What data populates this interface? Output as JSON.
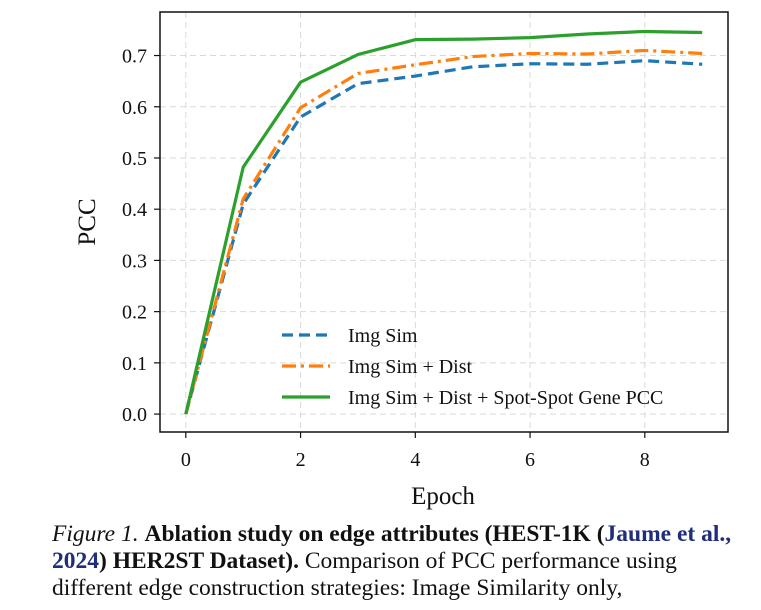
{
  "chart_data": {
    "type": "line",
    "xlabel": "Epoch",
    "ylabel": "PCC",
    "xlim": [
      -0.45,
      9.45
    ],
    "ylim": [
      -0.035,
      0.785
    ],
    "xticks": [
      0,
      2,
      4,
      6,
      8
    ],
    "yticks": [
      0.0,
      0.1,
      0.2,
      0.3,
      0.4,
      0.5,
      0.6,
      0.7
    ],
    "ytick_labels": [
      "0.0",
      "0.1",
      "0.2",
      "0.3",
      "0.4",
      "0.5",
      "0.6",
      "0.7"
    ],
    "xtick_labels": [
      "0",
      "2",
      "4",
      "6",
      "8"
    ],
    "grid": true,
    "legend_position": "lower-right",
    "x": [
      0,
      1,
      2,
      3,
      4,
      5,
      6,
      7,
      8,
      9
    ],
    "series": [
      {
        "name": "Img Sim",
        "color": "#1f77b4",
        "style": "dashed",
        "values": [
          0.0,
          0.41,
          0.58,
          0.645,
          0.66,
          0.678,
          0.684,
          0.683,
          0.69,
          0.683
        ]
      },
      {
        "name": "Img Sim + Dist",
        "color": "#ff7f0e",
        "style": "dashdot",
        "values": [
          0.0,
          0.42,
          0.598,
          0.665,
          0.682,
          0.698,
          0.704,
          0.703,
          0.71,
          0.704
        ]
      },
      {
        "name": "Img Sim + Dist + Spot-Spot Gene PCC",
        "color": "#2ca02c",
        "style": "solid",
        "values": [
          0.0,
          0.482,
          0.648,
          0.702,
          0.731,
          0.732,
          0.735,
          0.742,
          0.747,
          0.745
        ]
      }
    ]
  },
  "caption": {
    "figure_label": "Figure 1.",
    "bold_title_a": "Ablation study on edge attributes (HEST-1K (",
    "citation": "Jaume et al., 2024",
    "bold_title_b": ") HER2ST Dataset).",
    "body": "Comparison of PCC performance using different edge construction strategies: Image Similarity only,"
  }
}
